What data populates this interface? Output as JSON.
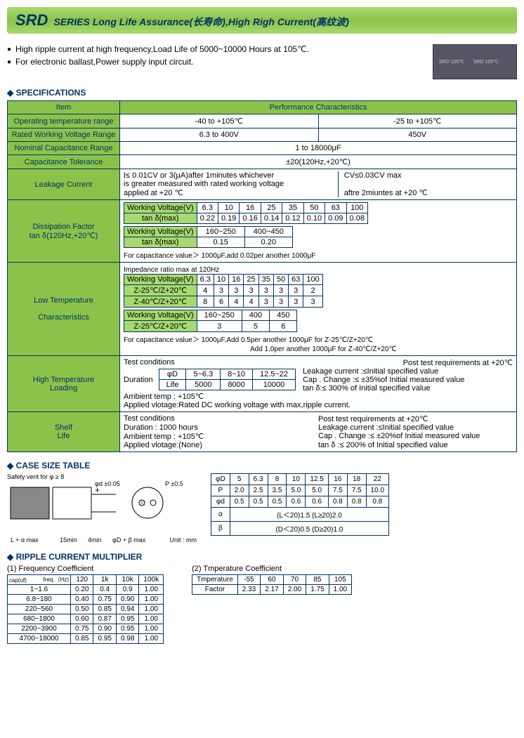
{
  "header": {
    "srd": "SRD",
    "sub": "SERIES Long Life Assurance(长寿命),High Righ Current(高纹波)"
  },
  "bullets": {
    "b1": "High ripple current at high frequency,Load Life of 5000~10000 Hours at 105℃.",
    "b2": "For electronic ballast,Power supply input circuit."
  },
  "sec": {
    "spec": "SPECIFICATIONS",
    "case": "CASE SIZE TABLE",
    "ripple": "RIPPLE CURRENT MULTIPLIER"
  },
  "spec": {
    "item": "Item",
    "perf": "Performance Characteristics",
    "r1": {
      "l": "Operating  temperature range",
      "v1": "-40 to +105℃",
      "v2": "-25 to +105℃"
    },
    "r2": {
      "l": "Rated Working Voltage Range",
      "v1": "6.3 to 400V",
      "v2": "450V"
    },
    "r3": {
      "l": "Nominal Capacitance Range",
      "v": "1 to 18000μF"
    },
    "r4": {
      "l": "Capacitance Tolerance",
      "v": "±20(120Hz,+20℃)"
    },
    "leak": {
      "l": "Leakage Current",
      "t1": "I≤ 0.01CV or 3(μA)after 1minutes whichever",
      "t2": "is greater measured with rated working voltage",
      "t3": "applied at +20 ℃",
      "t4": "CV≤0.03CV max",
      "t5": "aftre 2miuntes at +20 ℃"
    },
    "diss": {
      "l1": "Dissipation Factor",
      "l2": "tan δ(120Hz,+20℃)",
      "wv": "Working Voltage(V)",
      "tan": "tan δ(max)",
      "h1": [
        "6.3",
        "10",
        "16",
        "25",
        "35",
        "50",
        "63",
        "100"
      ],
      "v1": [
        "0.22",
        "0.19",
        "0.16",
        "0.14",
        "0.12",
        "0.10",
        "0.09",
        "0.08"
      ],
      "h2": [
        "160~250",
        "400~450"
      ],
      "v2": [
        "0.15",
        "0.20"
      ],
      "note": "For capacitance value＞ 1000μF,add 0.02per another 1000μF"
    },
    "low": {
      "l1": "Low Temperature",
      "l2": "Characteristics",
      "imp": "Impedance ratio max at 120Hz",
      "wv": "Working Voltage(V)",
      "z25": "Z-25℃/Z+20℃",
      "z40": "Z-40℃/Z+20℃",
      "h1": [
        "6.3",
        "10",
        "16",
        "25",
        "35",
        "50",
        "63",
        "100"
      ],
      "r25": [
        "4",
        "3",
        "3",
        "3",
        "3",
        "3",
        "3",
        "2"
      ],
      "r40": [
        "8",
        "6",
        "4",
        "4",
        "3",
        "3",
        "3",
        "3"
      ],
      "h2": [
        "160~250",
        "400",
        "450"
      ],
      "r25b": [
        "3",
        "5",
        "6"
      ],
      "note1": "For capacitance value＞ 1000μF,Add 0.5per another 1000μF for Z-25℃/Z+20℃",
      "note2": "Add 1.0per another 1000μF for Z-40℃/Z+20℃"
    },
    "high": {
      "l1": "High Temperature",
      "l2": "Loading",
      "tc": "Test conditions",
      "pt": "Post test requirements at +20℃",
      "dur": "Duration",
      "phi": "φD",
      "life": "Life",
      "d1": "5~6.3",
      "d2": "8~10",
      "d3": "12.5~22",
      "l1v": "5000",
      "l2v": "8000",
      "l3v": "10000",
      "amb": "Ambient temp   : +105℃",
      "app": "Applied vlotage:Rated DC working voltage with max,ripple current.",
      "p1": "Leakage current :≤Initial specified value",
      "p2": "Cap . Change :≤ ±35%of Initial measured value",
      "p3": "tan δ:≤ 300% of Initial specified value"
    },
    "shelf": {
      "l1": "Shelf",
      "l2": "Life",
      "tc": "Test conditions",
      "pt": "Post test requirements at +20℃",
      "dur": "Duration        : 1000 hours",
      "leak": "Leakage current :≤Initial specified value",
      "amb": "Ambient temp   : +105℃",
      "cap": "Cap . Change :≤ ±20%of Initial measured value",
      "app": "Applied vlotage:(None)",
      "tan": "tan δ             :≤ 200% of Initial specified value"
    }
  },
  "case": {
    "safety": "Safety vent for φ ≥ 8",
    "phid": "φd ±0.05",
    "p": "P ±0.5",
    "la": "L + α max",
    "min15": "15min",
    "min4": "4min",
    "phidb": "φD + β max",
    "unit": "Unit : mm",
    "hdr": [
      "φD",
      "5",
      "6.3",
      "8",
      "10",
      "12.5",
      "16",
      "18",
      "22"
    ],
    "rP": [
      "P",
      "2.0",
      "2.5",
      "3.5",
      "5.0",
      "5.0",
      "7.5",
      "7.5",
      "10.0"
    ],
    "rd": [
      "φd",
      "0.5",
      "0.5",
      "0.5",
      "0.6",
      "0.6",
      "0.8",
      "0.8",
      "0.8"
    ],
    "ra": [
      "α",
      "(L＜20)1.5    (L≥20)2.0"
    ],
    "rb": [
      "β",
      "(D＜20)0.5    (D≥20)1.0"
    ]
  },
  "ripple": {
    "freq": {
      "title": "(1) Frequency Coefficient",
      "hz": "freq.（Hz)",
      "cap": "cap(uf)",
      "cols": [
        "120",
        "1k",
        "10k",
        "100k"
      ],
      "rows": [
        {
          "r": "1~1.6",
          "v": [
            "0.20",
            "0.4",
            "0.9",
            "1.00"
          ]
        },
        {
          "r": "6.8~180",
          "v": [
            "0.40",
            "0.75",
            "0.90",
            "1.00"
          ]
        },
        {
          "r": "220~560",
          "v": [
            "0.50",
            "0.85",
            "0.94",
            "1.00"
          ]
        },
        {
          "r": "680~1800",
          "v": [
            "0.60",
            "0.87",
            "0.95",
            "1.00"
          ]
        },
        {
          "r": "2200~3900",
          "v": [
            "0.75",
            "0.90",
            "0.95",
            "1.00"
          ]
        },
        {
          "r": "4700~18000",
          "v": [
            "0.85",
            "0.95",
            "0.98",
            "1.00"
          ]
        }
      ]
    },
    "temp": {
      "title": "(2) Tmperature Coefficient",
      "h": [
        "Tmperature",
        "-55",
        "60",
        "70",
        "85",
        "105"
      ],
      "v": [
        "Factor",
        "2.33",
        "2.17",
        "2.00",
        "1.75",
        "1.00"
      ]
    }
  }
}
